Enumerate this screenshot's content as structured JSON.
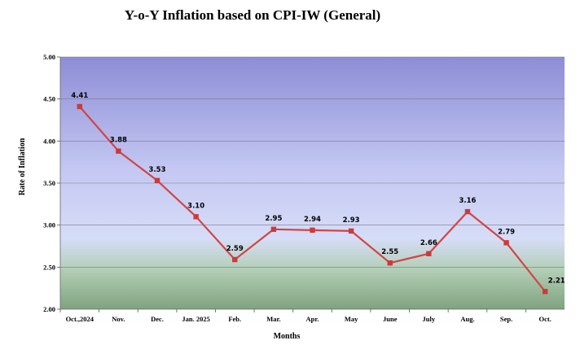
{
  "chart_data": {
    "type": "line",
    "title": "Y-o-Y Inflation based on CPI-IW (General)",
    "xlabel": "Months",
    "ylabel": "Rate of Inflation",
    "categories": [
      "Oct.,2024",
      "Nov.",
      "Dec.",
      "Jan. 2025",
      "Feb.",
      "Mar.",
      "Apr.",
      "May",
      "June",
      "July",
      "Aug.",
      "Sep.",
      "Oct."
    ],
    "series": [
      {
        "values": [
          4.41,
          3.88,
          3.53,
          3.1,
          2.59,
          2.95,
          2.94,
          2.93,
          2.55,
          2.66,
          3.16,
          2.79,
          2.21
        ]
      }
    ],
    "data_labels": [
      "4.41",
      "3.88",
      "3.53",
      "3.10",
      "2.59",
      "2.95",
      "2.94",
      "2.93",
      "2.55",
      "2.66",
      "3.16",
      "2.79",
      "2.21"
    ],
    "ylim": [
      2.0,
      5.0
    ],
    "yticks": [
      "2.00",
      "2.50",
      "3.00",
      "3.50",
      "4.00",
      "4.50",
      "5.00"
    ],
    "grid": true,
    "legend": "none",
    "colors": {
      "line": "#d24545",
      "marker": "#cc3a3a"
    }
  }
}
